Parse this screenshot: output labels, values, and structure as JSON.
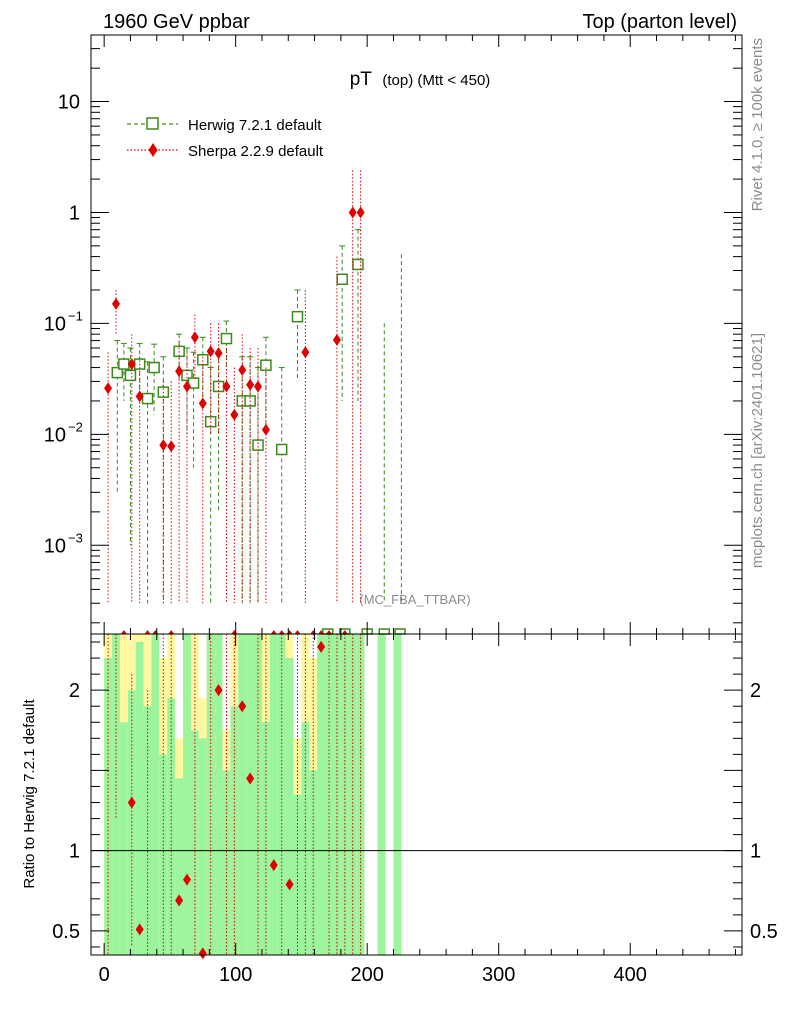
{
  "header": {
    "left": "1960 GeV ppbar",
    "right": "Top (parton level)"
  },
  "side_labels": {
    "rivet": "Rivet 4.1.0, ≥ 100k events",
    "mcplots": "mcplots.cern.ch [arXiv:2401.10621]"
  },
  "colors": {
    "herwig": "#3a8a1a",
    "sherpa": "#e00000",
    "band_inner": "#9cf59c",
    "band_outer": "#fff8a0",
    "axis": "#000000"
  },
  "chart_data": {
    "type": "scatter",
    "title_main": "pT",
    "title_sub": "(top) (Mtt < 450)",
    "watermark": "(MC_FBA_TTBAR)",
    "legend": [
      {
        "name": "Herwig 7.2.1 default",
        "style": "open-square-dashed"
      },
      {
        "name": "Sherpa 2.2.9 default",
        "style": "diamond-dotted"
      }
    ],
    "x_ticks": [
      "0",
      "100",
      "200",
      "300",
      "400"
    ],
    "x_range": [
      -10,
      485
    ],
    "main_y_range_log10": [
      -3.8,
      1.6
    ],
    "main_y_ticks": [
      {
        "v": 1,
        "label": "10"
      },
      {
        "v": 0,
        "label": "1"
      },
      {
        "v": -1,
        "label": "10",
        "sup": "−1"
      },
      {
        "v": -2,
        "label": "10",
        "sup": "−2"
      },
      {
        "v": -3,
        "label": "10",
        "sup": "−3"
      }
    ],
    "ratio_ylabel": "Ratio to Herwig 7.2.1 default",
    "ratio_range": [
      0.35,
      2.35
    ],
    "ratio_ticks": [
      {
        "v": 0.5,
        "label": "0.5"
      },
      {
        "v": 1,
        "label": "1"
      },
      {
        "v": 2,
        "label": "2"
      }
    ],
    "herwig": [
      {
        "x": 10,
        "y": 0.036,
        "lo": 0.003,
        "hi": 0.07
      },
      {
        "x": 15,
        "y": 0.043,
        "lo": 0.02,
        "hi": 0.066
      },
      {
        "x": 20,
        "y": 0.034,
        "lo": 0.001,
        "hi": 0.06
      },
      {
        "x": 27,
        "y": 0.043,
        "lo": 0.02,
        "hi": 0.066
      },
      {
        "x": 33,
        "y": 0.021,
        "lo": 0.0003,
        "hi": 0.045
      },
      {
        "x": 38,
        "y": 0.04,
        "lo": 0.015,
        "hi": 0.065
      },
      {
        "x": 45,
        "y": 0.024,
        "lo": 0.0003,
        "hi": 0.05
      },
      {
        "x": 57,
        "y": 0.056,
        "lo": 0.03,
        "hi": 0.08
      },
      {
        "x": 63,
        "y": 0.034,
        "lo": 0.01,
        "hi": 0.06
      },
      {
        "x": 68,
        "y": 0.029,
        "lo": 0.005,
        "hi": 0.055
      },
      {
        "x": 75,
        "y": 0.047,
        "lo": 0.02,
        "hi": 0.075
      },
      {
        "x": 81,
        "y": 0.013,
        "lo": 0.0003,
        "hi": 0.04
      },
      {
        "x": 87,
        "y": 0.027,
        "lo": 0.002,
        "hi": 0.055
      },
      {
        "x": 93,
        "y": 0.073,
        "lo": 0.04,
        "hi": 0.105
      },
      {
        "x": 105,
        "y": 0.02,
        "lo": 0.0003,
        "hi": 0.05
      },
      {
        "x": 111,
        "y": 0.02,
        "lo": 0.0003,
        "hi": 0.05
      },
      {
        "x": 117,
        "y": 0.008,
        "lo": 0.0003,
        "hi": 0.04
      },
      {
        "x": 123,
        "y": 0.042,
        "lo": 0.01,
        "hi": 0.075
      },
      {
        "x": 135,
        "y": 0.0073,
        "lo": 0.0003,
        "hi": 0.04
      },
      {
        "x": 147,
        "y": 0.115,
        "lo": 0.03,
        "hi": 0.2
      },
      {
        "x": 181,
        "y": 0.25,
        "lo": 0.02,
        "hi": 0.5
      },
      {
        "x": 193,
        "y": 0.34,
        "lo": 0.02,
        "hi": 0.7
      }
    ],
    "herwig_bottom_x": [
      170,
      183,
      200,
      213,
      225
    ],
    "herwig_bars": [
      {
        "x": 226,
        "lo": 0.0003,
        "hi": 0.42
      },
      {
        "x": 213,
        "lo": 0.0003,
        "hi": 0.1
      }
    ],
    "sherpa": [
      {
        "x": 3,
        "y": 0.026,
        "lo": 0.0003,
        "hi": 0.055
      },
      {
        "x": 9,
        "y": 0.15,
        "lo": 0.08,
        "hi": 0.2
      },
      {
        "x": 21,
        "y": 0.043,
        "lo": 0.0003,
        "hi": 0.08
      },
      {
        "x": 27,
        "y": 0.022,
        "lo": 0.0003,
        "hi": 0.05
      },
      {
        "x": 45,
        "y": 0.008,
        "lo": 0.0003,
        "hi": 0.03
      },
      {
        "x": 51,
        "y": 0.0078,
        "lo": 0.0003,
        "hi": 0.03
      },
      {
        "x": 57,
        "y": 0.037,
        "lo": 0.0003,
        "hi": 0.07
      },
      {
        "x": 63,
        "y": 0.027,
        "lo": 0.0003,
        "hi": 0.055
      },
      {
        "x": 69,
        "y": 0.075,
        "lo": 0.03,
        "hi": 0.12
      },
      {
        "x": 75,
        "y": 0.019,
        "lo": 0.0003,
        "hi": 0.05
      },
      {
        "x": 81,
        "y": 0.056,
        "lo": 0.01,
        "hi": 0.1
      },
      {
        "x": 87,
        "y": 0.054,
        "lo": 0.01,
        "hi": 0.1
      },
      {
        "x": 93,
        "y": 0.027,
        "lo": 0.0003,
        "hi": 0.06
      },
      {
        "x": 99,
        "y": 0.015,
        "lo": 0.0003,
        "hi": 0.04
      },
      {
        "x": 105,
        "y": 0.038,
        "lo": 0.0003,
        "hi": 0.08
      },
      {
        "x": 111,
        "y": 0.028,
        "lo": 0.0003,
        "hi": 0.06
      },
      {
        "x": 117,
        "y": 0.027,
        "lo": 0.0003,
        "hi": 0.06
      },
      {
        "x": 123,
        "y": 0.011,
        "lo": 0.0003,
        "hi": 0.04
      },
      {
        "x": 153,
        "y": 0.055,
        "lo": 0.0003,
        "hi": 0.2
      },
      {
        "x": 177,
        "y": 0.071,
        "lo": 0.0003,
        "hi": 0.4
      },
      {
        "x": 189,
        "y": 1.0,
        "lo": 0.0003,
        "hi": 2.4
      },
      {
        "x": 195,
        "y": 1.0,
        "lo": 0.0003,
        "hi": 2.4
      }
    ],
    "sherpa_bottom_x": [
      15,
      33,
      39,
      51,
      99,
      129,
      135,
      141,
      147,
      159,
      165,
      171,
      183
    ],
    "ratio_points": [
      {
        "x": 21,
        "y": 1.3
      },
      {
        "x": 27,
        "y": 0.51
      },
      {
        "x": 57,
        "y": 0.69
      },
      {
        "x": 63,
        "y": 0.82
      },
      {
        "x": 75,
        "y": 0.36
      },
      {
        "x": 87,
        "y": 2.0
      },
      {
        "x": 105,
        "y": 1.9
      },
      {
        "x": 111,
        "y": 1.45
      },
      {
        "x": 129,
        "y": 0.91
      },
      {
        "x": 141,
        "y": 0.79
      },
      {
        "x": 165,
        "y": 2.27
      }
    ],
    "ratio_bars": [
      {
        "x": 3,
        "lo": 0.35,
        "hi": 2.35
      },
      {
        "x": 9,
        "lo": 1.2,
        "hi": 2.35
      },
      {
        "x": 21,
        "lo": 0.4,
        "hi": 2.1
      },
      {
        "x": 33,
        "lo": 0.35,
        "hi": 2.0
      },
      {
        "x": 45,
        "lo": 0.35,
        "hi": 2.35
      },
      {
        "x": 51,
        "lo": 0.35,
        "hi": 2.35
      },
      {
        "x": 69,
        "lo": 0.35,
        "hi": 2.35
      },
      {
        "x": 81,
        "lo": 0.35,
        "hi": 2.35
      },
      {
        "x": 93,
        "lo": 0.35,
        "hi": 2.35
      },
      {
        "x": 99,
        "lo": 0.35,
        "hi": 2.35
      },
      {
        "x": 117,
        "lo": 0.35,
        "hi": 2.35
      },
      {
        "x": 123,
        "lo": 0.35,
        "hi": 2.35
      },
      {
        "x": 135,
        "lo": 0.35,
        "hi": 2.35
      },
      {
        "x": 147,
        "lo": 0.35,
        "hi": 2.35
      },
      {
        "x": 153,
        "lo": 0.35,
        "hi": 2.35
      },
      {
        "x": 159,
        "lo": 0.35,
        "hi": 2.35
      },
      {
        "x": 171,
        "lo": 0.35,
        "hi": 2.35
      },
      {
        "x": 177,
        "lo": 0.35,
        "hi": 2.35
      },
      {
        "x": 183,
        "lo": 0.35,
        "hi": 2.35
      },
      {
        "x": 189,
        "lo": 0.35,
        "hi": 2.35
      },
      {
        "x": 195,
        "lo": 0.35,
        "hi": 2.35
      }
    ],
    "ratio_band_bins": [
      {
        "x0": 0,
        "x1": 6,
        "outer": [
          0.35,
          2.35
        ],
        "inner": [
          0.35,
          2.2
        ]
      },
      {
        "x0": 6,
        "x1": 12,
        "outer": [
          0.35,
          2.35
        ],
        "inner": [
          0.35,
          2.35
        ]
      },
      {
        "x0": 12,
        "x1": 18,
        "outer": [
          0.35,
          2.35
        ],
        "inner": [
          0.35,
          1.8
        ]
      },
      {
        "x0": 18,
        "x1": 24,
        "outer": [
          0.35,
          2.35
        ],
        "inner": [
          0.35,
          2.0
        ]
      },
      {
        "x0": 24,
        "x1": 30,
        "outer": [
          0.35,
          2.35
        ],
        "inner": [
          0.35,
          2.3
        ]
      },
      {
        "x0": 30,
        "x1": 36,
        "outer": [
          0.35,
          2.35
        ],
        "inner": [
          0.35,
          1.9
        ]
      },
      {
        "x0": 36,
        "x1": 42,
        "outer": [
          0.35,
          2.35
        ],
        "inner": [
          0.35,
          2.35
        ]
      },
      {
        "x0": 42,
        "x1": 48,
        "outer": [
          0.35,
          2.2
        ],
        "inner": [
          0.35,
          1.6
        ]
      },
      {
        "x0": 48,
        "x1": 54,
        "outer": [
          0.35,
          2.35
        ],
        "inner": [
          0.35,
          1.95
        ]
      },
      {
        "x0": 54,
        "x1": 60,
        "outer": [
          0.35,
          1.7
        ],
        "inner": [
          0.35,
          1.45
        ]
      },
      {
        "x0": 60,
        "x1": 66,
        "outer": [
          0.35,
          2.35
        ],
        "inner": [
          0.35,
          2.35
        ]
      },
      {
        "x0": 66,
        "x1": 72,
        "outer": [
          0.35,
          2.35
        ],
        "inner": [
          0.35,
          1.75
        ]
      },
      {
        "x0": 72,
        "x1": 78,
        "outer": [
          0.35,
          1.95
        ],
        "inner": [
          0.35,
          1.7
        ]
      },
      {
        "x0": 78,
        "x1": 84,
        "outer": [
          0.35,
          2.35
        ],
        "inner": [
          0.35,
          2.35
        ]
      },
      {
        "x0": 84,
        "x1": 90,
        "outer": [
          0.35,
          2.35
        ],
        "inner": [
          0.35,
          2.35
        ]
      },
      {
        "x0": 90,
        "x1": 96,
        "outer": [
          0.35,
          1.75
        ],
        "inner": [
          0.35,
          1.5
        ]
      },
      {
        "x0": 96,
        "x1": 102,
        "outer": [
          0.35,
          2.35
        ],
        "inner": [
          0.35,
          1.9
        ]
      },
      {
        "x0": 102,
        "x1": 108,
        "outer": [
          0.35,
          2.35
        ],
        "inner": [
          0.35,
          2.35
        ]
      },
      {
        "x0": 108,
        "x1": 114,
        "outer": [
          0.35,
          2.35
        ],
        "inner": [
          0.35,
          2.35
        ]
      },
      {
        "x0": 114,
        "x1": 120,
        "outer": [
          0.35,
          2.35
        ],
        "inner": [
          0.35,
          2.35
        ]
      },
      {
        "x0": 120,
        "x1": 126,
        "outer": [
          0.35,
          2.35
        ],
        "inner": [
          0.35,
          1.8
        ]
      },
      {
        "x0": 126,
        "x1": 132,
        "outer": [
          0.35,
          2.35
        ],
        "inner": [
          0.35,
          2.35
        ]
      },
      {
        "x0": 132,
        "x1": 138,
        "outer": [
          0.35,
          2.35
        ],
        "inner": [
          0.35,
          2.35
        ]
      },
      {
        "x0": 138,
        "x1": 144,
        "outer": [
          0.35,
          2.35
        ],
        "inner": [
          0.35,
          2.2
        ]
      },
      {
        "x0": 144,
        "x1": 150,
        "outer": [
          0.35,
          1.7
        ],
        "inner": [
          0.35,
          1.35
        ]
      },
      {
        "x0": 150,
        "x1": 156,
        "outer": [
          0.35,
          2.35
        ],
        "inner": [
          0.35,
          1.8
        ]
      },
      {
        "x0": 156,
        "x1": 162,
        "outer": [
          0.35,
          2.2
        ],
        "inner": [
          0.35,
          1.5
        ]
      },
      {
        "x0": 162,
        "x1": 168,
        "outer": [
          0.35,
          2.35
        ],
        "inner": [
          0.35,
          2.35
        ]
      },
      {
        "x0": 168,
        "x1": 174,
        "outer": [
          0.35,
          2.35
        ],
        "inner": [
          0.35,
          2.35
        ]
      },
      {
        "x0": 174,
        "x1": 180,
        "outer": [
          0.35,
          2.35
        ],
        "inner": [
          0.35,
          2.35
        ]
      },
      {
        "x0": 180,
        "x1": 186,
        "outer": [
          0.4,
          2.35
        ],
        "inner": [
          0.35,
          2.35
        ]
      },
      {
        "x0": 186,
        "x1": 192,
        "outer": [
          0.45,
          2.35
        ],
        "inner": [
          0.35,
          2.35
        ]
      },
      {
        "x0": 192,
        "x1": 198,
        "outer": [
          0.35,
          2.35
        ],
        "inner": [
          0.35,
          2.35
        ]
      },
      {
        "x0": 208,
        "x1": 214,
        "outer": [
          0.35,
          2.35
        ],
        "inner": [
          0.35,
          2.35
        ]
      },
      {
        "x0": 220,
        "x1": 226,
        "outer": [
          0.35,
          2.35
        ],
        "inner": [
          0.35,
          2.35
        ]
      }
    ]
  }
}
